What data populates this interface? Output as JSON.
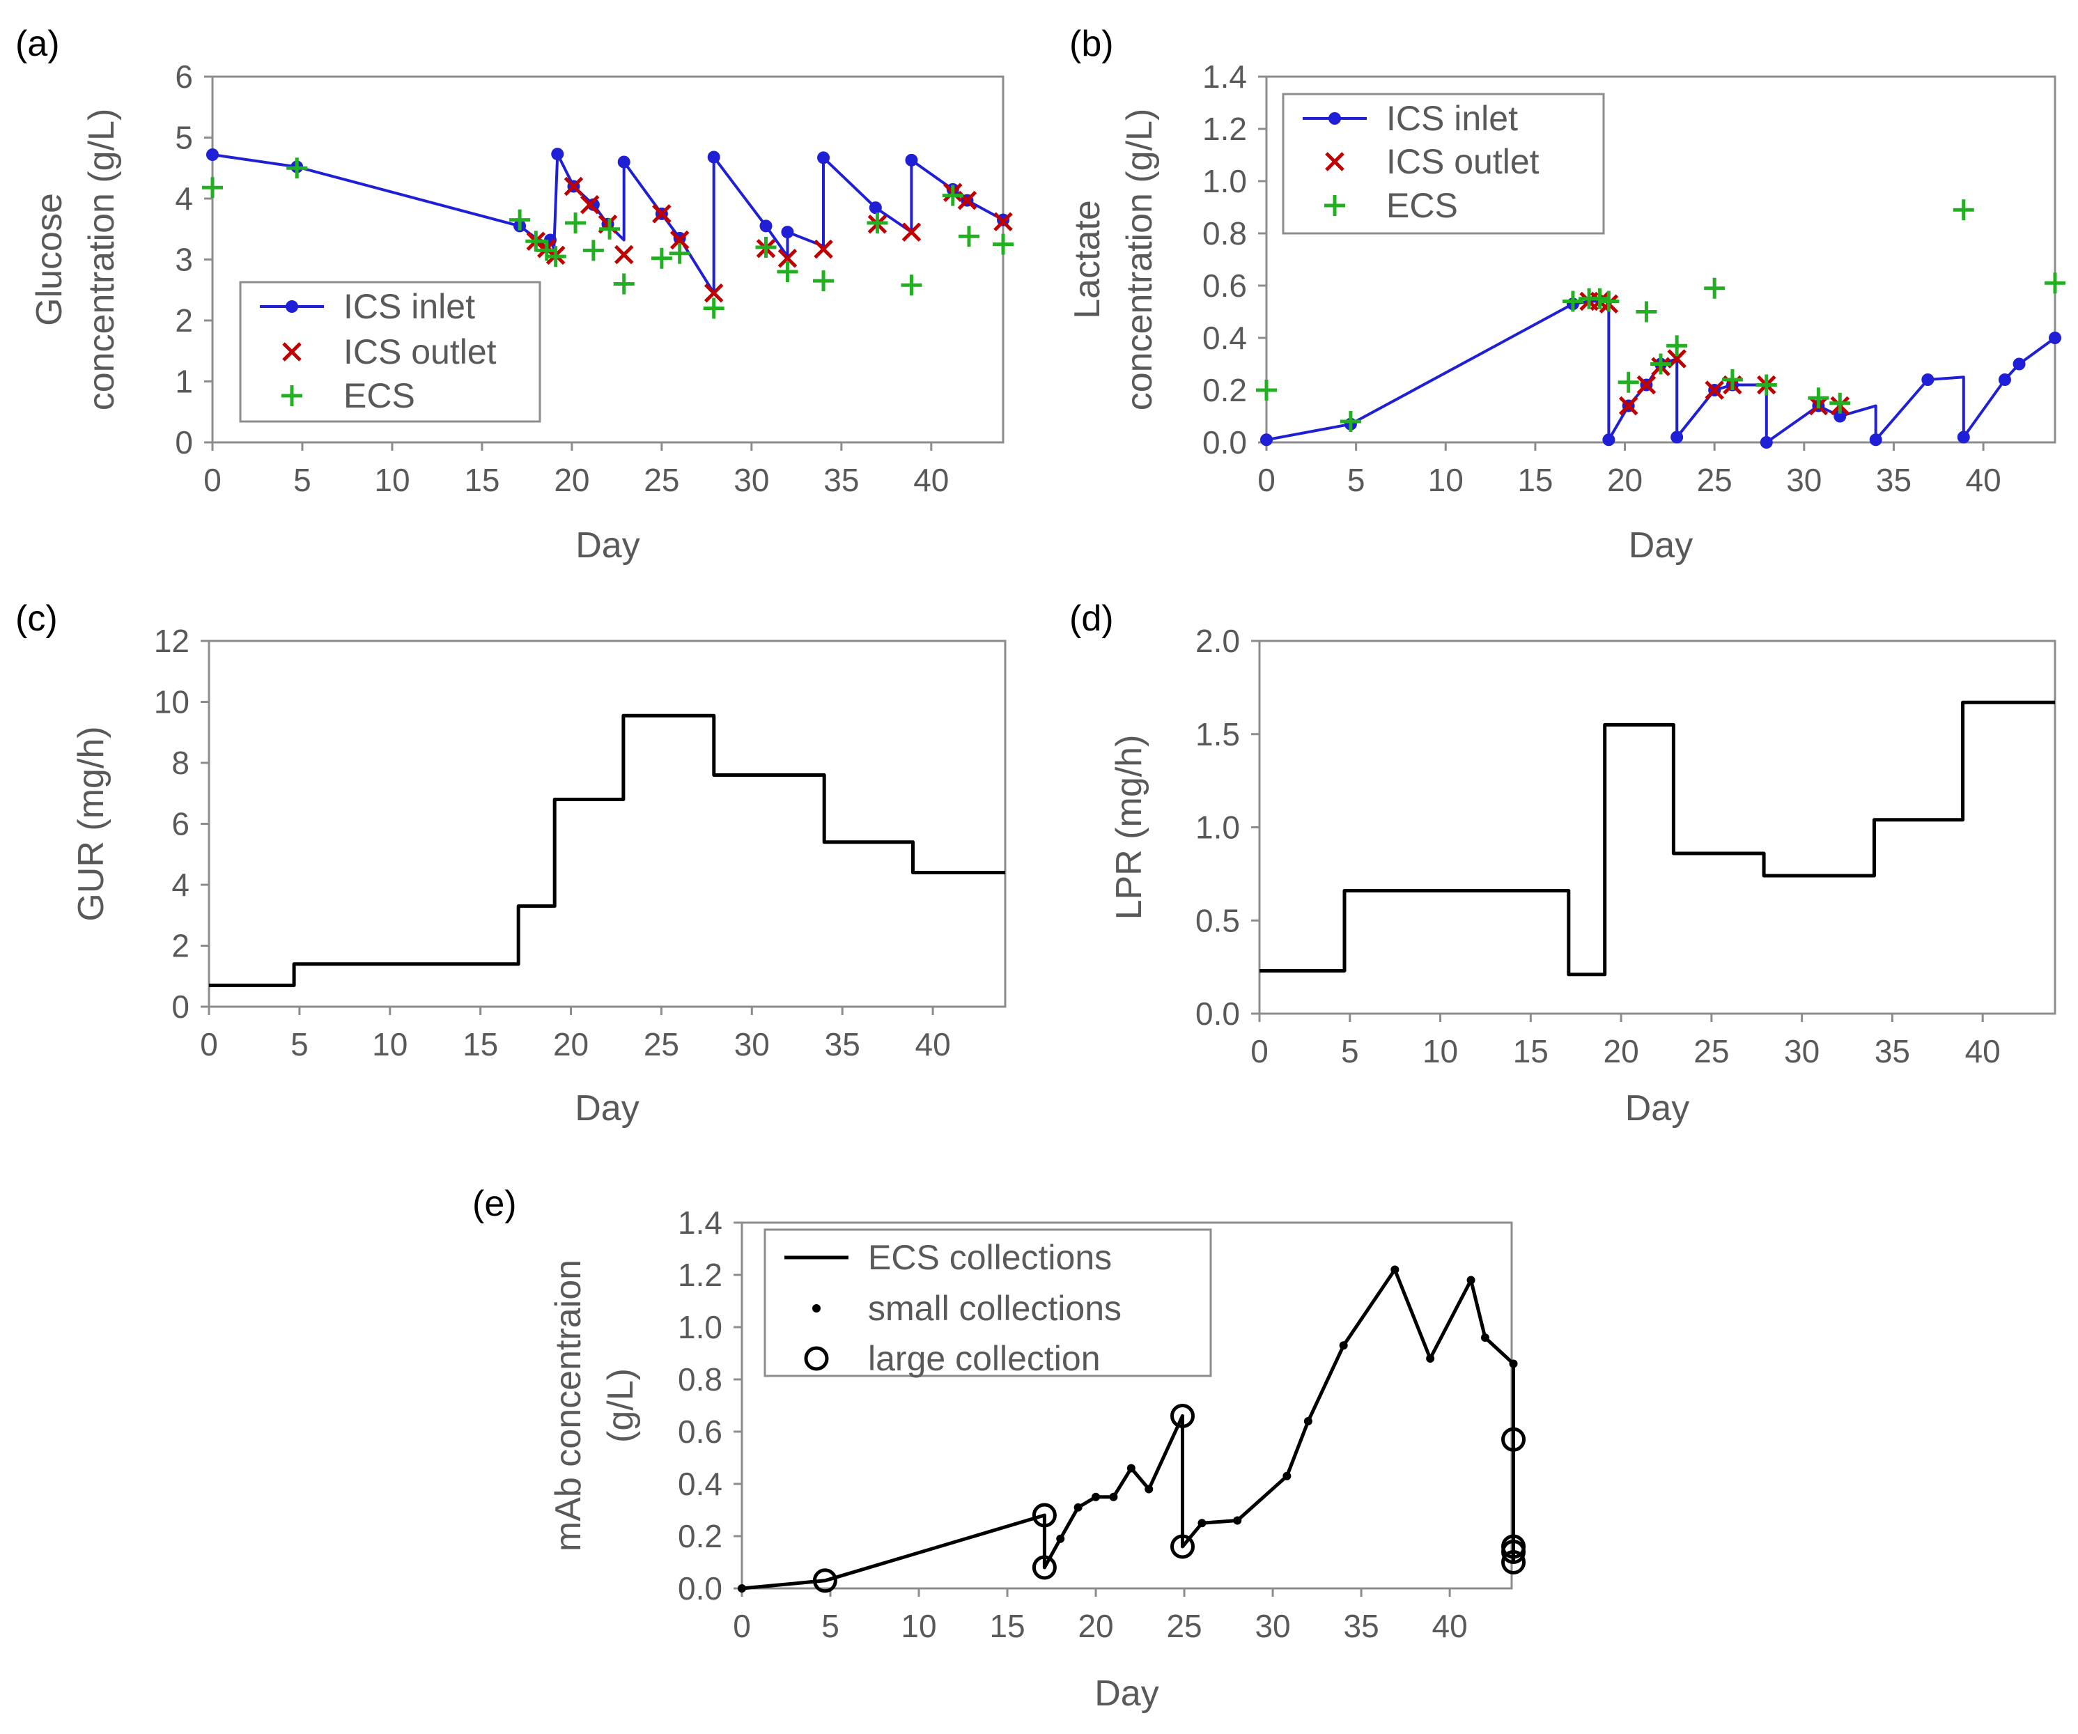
{
  "chart_data": [
    {
      "panel_label": "(a)",
      "type": "line",
      "xlabel": "Day",
      "ylabel_lines": [
        "Glucose",
        "concentration (g/L)"
      ],
      "xlim": [
        0,
        44
      ],
      "ylim": [
        0,
        6
      ],
      "xticks": [
        0,
        5,
        10,
        15,
        20,
        25,
        30,
        35,
        40
      ],
      "yticks": [
        0,
        1,
        2,
        3,
        4,
        5,
        6
      ],
      "ytick_labels": [
        "0",
        "1",
        "2",
        "3",
        "4",
        "5",
        "6"
      ],
      "legend_position": "bottom-left",
      "series": [
        {
          "name": "ICS inlet",
          "style": "line-dots",
          "color": "#1f1fd6",
          "x": [
            0,
            4.7,
            17.1,
            18,
            18.8,
            18.9,
            19,
            19.2,
            20.1,
            21.2,
            22,
            22.9,
            22.9,
            25,
            26,
            27.9,
            27.9,
            30.8,
            32,
            32,
            34,
            34,
            36.9,
            38.9,
            38.9,
            41.2,
            42,
            44
          ],
          "y": [
            4.72,
            4.52,
            3.55,
            3.35,
            3.25,
            3.32,
            3.15,
            4.73,
            4.2,
            3.9,
            3.58,
            3.32,
            4.6,
            3.75,
            3.35,
            2.45,
            4.68,
            3.55,
            3.05,
            3.45,
            3.22,
            4.67,
            3.85,
            3.45,
            4.63,
            4.15,
            3.97,
            3.65
          ],
          "markers_x": [
            0,
            4.7,
            17.1,
            18.8,
            19.2,
            20.1,
            21.2,
            22,
            22.9,
            25,
            26,
            27.9,
            30.8,
            32,
            34,
            36.9,
            38.9,
            41.2,
            42,
            44
          ],
          "markers_y": [
            4.72,
            4.52,
            3.55,
            3.32,
            4.73,
            4.2,
            3.9,
            3.58,
            4.6,
            3.75,
            3.35,
            4.68,
            3.55,
            3.45,
            4.67,
            3.85,
            4.63,
            4.15,
            3.97,
            3.65
          ]
        },
        {
          "name": "ICS outlet",
          "style": "x",
          "color": "#c00000",
          "x": [
            18,
            18.6,
            19.1,
            20.1,
            21,
            22,
            22.9,
            25,
            26,
            27.9,
            30.8,
            32,
            34,
            37,
            38.9,
            41.2,
            42,
            44
          ],
          "y": [
            3.3,
            3.18,
            3.07,
            4.2,
            3.9,
            3.58,
            3.08,
            3.75,
            3.32,
            2.45,
            3.18,
            3.02,
            3.17,
            3.58,
            3.45,
            4.1,
            3.97,
            3.62
          ]
        },
        {
          "name": "ECS",
          "style": "plus",
          "color": "#22b022",
          "x": [
            0,
            4.7,
            17.1,
            18,
            18.6,
            19.1,
            20.2,
            21.2,
            22.1,
            22.9,
            25,
            26,
            27.9,
            30.8,
            32,
            34,
            37,
            38.9,
            41.2,
            42.1,
            44
          ],
          "y": [
            4.18,
            4.5,
            3.65,
            3.3,
            3.15,
            3.05,
            3.6,
            3.15,
            3.5,
            2.6,
            3.02,
            3.1,
            2.2,
            3.2,
            2.8,
            2.65,
            3.6,
            2.58,
            4.05,
            3.38,
            3.25
          ]
        }
      ]
    },
    {
      "panel_label": "(b)",
      "type": "line",
      "xlabel": "Day",
      "ylabel_lines": [
        "Lactate",
        "concentration (g/L)"
      ],
      "xlim": [
        0,
        44
      ],
      "ylim": [
        0,
        1.4
      ],
      "xticks": [
        0,
        5,
        10,
        15,
        20,
        25,
        30,
        35,
        40
      ],
      "yticks": [
        0,
        0.2,
        0.4,
        0.6,
        0.8,
        1.0,
        1.2,
        1.4
      ],
      "ytick_labels": [
        "0.0",
        "0.2",
        "0.4",
        "0.6",
        "0.8",
        "1.0",
        "1.2",
        "1.4"
      ],
      "legend_position": "top-left",
      "series": [
        {
          "name": "ICS inlet",
          "style": "line-dots",
          "color": "#1f1fd6",
          "x": [
            0,
            4.7,
            17.1,
            18,
            18.6,
            19.1,
            19.1,
            20.2,
            21.2,
            22,
            22.9,
            22.9,
            25,
            26,
            27.9,
            27.9,
            30.8,
            32,
            34,
            34,
            36.9,
            38.9,
            38.9,
            41.2,
            42,
            44
          ],
          "y": [
            0.01,
            0.07,
            0.53,
            0.54,
            0.54,
            0.54,
            0.01,
            0.14,
            0.22,
            0.3,
            0.32,
            0.02,
            0.2,
            0.22,
            0.22,
            0.0,
            0.14,
            0.1,
            0.14,
            0.01,
            0.24,
            0.25,
            0.02,
            0.24,
            0.3,
            0.4
          ],
          "markers_x": [
            0,
            4.7,
            17.1,
            19.1,
            20.2,
            21.2,
            22,
            22.9,
            25,
            26,
            27.9,
            30.8,
            32,
            34,
            36.9,
            38.9,
            41.2,
            42,
            44
          ],
          "markers_y": [
            0.01,
            0.07,
            0.53,
            0.01,
            0.14,
            0.22,
            0.3,
            0.02,
            0.2,
            0.22,
            0.0,
            0.14,
            0.1,
            0.01,
            0.24,
            0.02,
            0.24,
            0.3,
            0.4
          ]
        },
        {
          "name": "ICS outlet",
          "style": "x",
          "color": "#c00000",
          "x": [
            18,
            18.6,
            19.1,
            20.2,
            21.2,
            22,
            22.9,
            25,
            26,
            27.9,
            30.8,
            32
          ],
          "y": [
            0.54,
            0.54,
            0.53,
            0.14,
            0.22,
            0.29,
            0.32,
            0.2,
            0.22,
            0.22,
            0.14,
            0.14
          ]
        },
        {
          "name": "ECS",
          "style": "plus",
          "color": "#22b022",
          "x": [
            0,
            4.7,
            17.1,
            18,
            18.6,
            19.1,
            20.2,
            21.2,
            22,
            22.9,
            25,
            26,
            27.9,
            30.8,
            32,
            38.9,
            44
          ],
          "y": [
            0.2,
            0.08,
            0.54,
            0.55,
            0.55,
            0.54,
            0.23,
            0.5,
            0.3,
            0.37,
            0.59,
            0.24,
            0.22,
            0.17,
            0.15,
            0.89,
            0.61
          ]
        }
      ]
    },
    {
      "panel_label": "(c)",
      "type": "step",
      "xlabel": "Day",
      "ylabel_lines": [
        "GUR (mg/h)"
      ],
      "xlim": [
        0,
        44
      ],
      "ylim": [
        0,
        12
      ],
      "xticks": [
        0,
        5,
        10,
        15,
        20,
        25,
        30,
        35,
        40
      ],
      "yticks": [
        0,
        2,
        4,
        6,
        8,
        10,
        12
      ],
      "ytick_labels": [
        "0",
        "2",
        "4",
        "6",
        "8",
        "10",
        "12"
      ],
      "series": [
        {
          "name": "GUR",
          "style": "line",
          "color": "#000000",
          "x": [
            0,
            4.7,
            4.7,
            17.1,
            17.1,
            19.1,
            19.1,
            22.9,
            22.9,
            27.9,
            27.9,
            34,
            34,
            38.9,
            38.9,
            44
          ],
          "y": [
            0.7,
            0.7,
            1.4,
            1.4,
            3.3,
            3.3,
            6.8,
            6.8,
            9.55,
            9.55,
            7.6,
            7.6,
            5.4,
            5.4,
            4.4,
            4.4
          ]
        }
      ]
    },
    {
      "panel_label": "(d)",
      "type": "step",
      "xlabel": "Day",
      "ylabel_lines": [
        "LPR (mg/h)"
      ],
      "xlim": [
        0,
        44
      ],
      "ylim": [
        0,
        2.0
      ],
      "xticks": [
        0,
        5,
        10,
        15,
        20,
        25,
        30,
        35,
        40
      ],
      "yticks": [
        0,
        0.5,
        1.0,
        1.5,
        2.0
      ],
      "ytick_labels": [
        "0.0",
        "0.5",
        "1.0",
        "1.5",
        "2.0"
      ],
      "series": [
        {
          "name": "LPR",
          "style": "line",
          "color": "#000000",
          "x": [
            0,
            4.7,
            4.7,
            17.1,
            17.1,
            19.1,
            19.1,
            22.9,
            22.9,
            27.9,
            27.9,
            34,
            34,
            38.9,
            38.9,
            44
          ],
          "y": [
            0.23,
            0.23,
            0.66,
            0.66,
            0.21,
            0.21,
            1.55,
            1.55,
            0.86,
            0.86,
            0.74,
            0.74,
            1.04,
            1.04,
            1.67,
            1.67
          ]
        }
      ]
    },
    {
      "panel_label": "(e)",
      "type": "line",
      "xlabel": "Day",
      "ylabel_lines": [
        "mAb concentraion",
        "(g/L)"
      ],
      "xlim": [
        0,
        43.5
      ],
      "ylim": [
        0,
        1.4
      ],
      "xticks": [
        0,
        5,
        10,
        15,
        20,
        25,
        30,
        35,
        40
      ],
      "yticks": [
        0,
        0.2,
        0.4,
        0.6,
        0.8,
        1.0,
        1.2,
        1.4
      ],
      "ytick_labels": [
        "0.0",
        "0.2",
        "0.4",
        "0.6",
        "0.8",
        "1.0",
        "1.2",
        "1.4"
      ],
      "legend_position": "top-left",
      "series": [
        {
          "name": "ECS collections",
          "style": "line",
          "color": "#000000",
          "x": [
            0,
            4.7,
            17.1,
            17.1,
            18,
            19,
            20,
            21,
            22,
            23,
            24.9,
            24.9,
            26,
            28,
            30.8,
            32,
            34,
            36.9,
            38.9,
            41.2,
            42,
            43.6,
            43.6
          ],
          "y": [
            0.0,
            0.03,
            0.28,
            0.08,
            0.19,
            0.31,
            0.35,
            0.35,
            0.46,
            0.38,
            0.66,
            0.16,
            0.25,
            0.26,
            0.43,
            0.64,
            0.93,
            1.22,
            0.88,
            1.18,
            0.96,
            0.86,
            0.1
          ]
        },
        {
          "name": "small collections",
          "style": "dot",
          "color": "#000000",
          "x": [
            0,
            18,
            19,
            20,
            21,
            22,
            23,
            26,
            28,
            30.8,
            32,
            34,
            36.9,
            38.9,
            41.2,
            42,
            43.6
          ],
          "y": [
            0.0,
            0.19,
            0.31,
            0.35,
            0.35,
            0.46,
            0.38,
            0.25,
            0.26,
            0.43,
            0.64,
            0.93,
            1.22,
            0.88,
            1.18,
            0.96,
            0.86
          ]
        },
        {
          "name": "large collection",
          "style": "circle",
          "color": "#000000",
          "x": [
            4.7,
            17.1,
            17.1,
            24.9,
            24.9,
            43.6,
            43.6,
            43.6,
            43.6
          ],
          "y": [
            0.03,
            0.28,
            0.08,
            0.66,
            0.16,
            0.57,
            0.16,
            0.14,
            0.1
          ]
        }
      ]
    }
  ]
}
